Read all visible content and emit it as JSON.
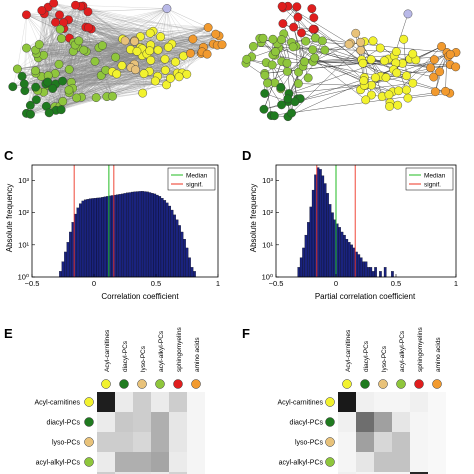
{
  "panels": {
    "C": {
      "letter": "C",
      "xlabel": "Correlation coefficient",
      "ylabel": "Absolute frequency",
      "xticks": [
        "−0.5",
        "0",
        "0.5",
        "1"
      ],
      "yticks": [
        "10⁰",
        "10¹",
        "10²",
        "10³"
      ],
      "legend": [
        "Median",
        "signif."
      ]
    },
    "D": {
      "letter": "D",
      "xlabel": "Partial correlation coefficient",
      "ylabel": "Absolute frequency",
      "xticks": [
        "−0.5",
        "0",
        "0.5",
        "1"
      ],
      "yticks": [
        "10⁰",
        "10¹",
        "10²",
        "10³"
      ],
      "legend": [
        "Median",
        "signif."
      ]
    },
    "E": {
      "letter": "E"
    },
    "F": {
      "letter": "F"
    }
  },
  "matrix_columns": [
    "Acyl-carnitines",
    "diacyl-PCs",
    "lyso-PCs",
    "acyl-alkyl-PCs",
    "sphingomyelins",
    "amino acids"
  ],
  "matrix_rows": [
    "Acyl-carnitines",
    "diacyl-PCs",
    "lyso-PCs",
    "acyl-alkyl-PCs"
  ],
  "colors": {
    "acyl_carnitines": "#f2f22e",
    "diacyl_pcs": "#1f7a1f",
    "lyso_pcs": "#e8c27a",
    "acyl_alkyl_pcs": "#8fc63c",
    "sphingomyelins": "#e01e1e",
    "amino_acids": "#f29a2e",
    "other": "#b9b9e8",
    "bar_fill": "#1a237e",
    "median_line": "#22bb22",
    "signif_line": "#ee3322"
  },
  "chart_data": [
    {
      "type": "bar",
      "title": "",
      "xlabel": "Correlation coefficient",
      "ylabel": "Absolute frequency",
      "xlim": [
        -0.5,
        1
      ],
      "ylim": [
        1,
        3000
      ],
      "yscale": "log",
      "median": 0.12,
      "signif": [
        -0.16,
        0.16
      ],
      "bins_start": -0.28,
      "bin_width": 0.02,
      "values": [
        1.5,
        3,
        6,
        12,
        25,
        50,
        90,
        140,
        190,
        230,
        250,
        260,
        270,
        275,
        280,
        285,
        290,
        300,
        310,
        320,
        330,
        340,
        350,
        360,
        370,
        380,
        395,
        410,
        420,
        435,
        445,
        450,
        455,
        460,
        450,
        440,
        420,
        400,
        380,
        350,
        320,
        280,
        240,
        200,
        160,
        120,
        85,
        60,
        40,
        25,
        15,
        8,
        4,
        2,
        1.5,
        1
      ]
    },
    {
      "type": "bar",
      "title": "",
      "xlabel": "Partial correlation coefficient",
      "ylabel": "Absolute frequency",
      "xlim": [
        -0.5,
        1
      ],
      "ylim": [
        1,
        3000
      ],
      "yscale": "log",
      "median": 0.0,
      "signif": [
        -0.16,
        0.16
      ],
      "bins_start": -0.34,
      "bin_width": 0.02,
      "values": [
        1,
        2,
        4,
        8,
        20,
        50,
        150,
        500,
        1500,
        2500,
        2200,
        1400,
        800,
        400,
        180,
        100,
        60,
        45,
        35,
        25,
        20,
        15,
        12,
        10,
        8,
        6,
        5,
        4,
        3,
        3,
        2,
        2,
        1.5,
        2,
        1,
        1.5,
        1,
        2,
        1,
        1,
        1.5,
        1,
        1
      ]
    }
  ]
}
